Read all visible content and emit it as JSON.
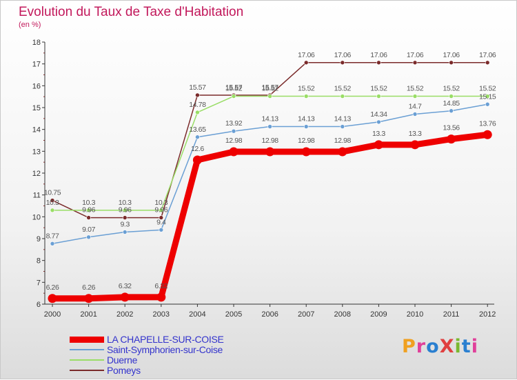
{
  "header": {
    "title": "Evolution du Taux de Taxe d'Habitation",
    "subtitle": "(en %)"
  },
  "logo": {
    "text": "ProXiti",
    "letter_colors": [
      "#f0a020",
      "#e0409a",
      "#2a7fd0",
      "#e04040",
      "#7ab830",
      "#2a7fd0",
      "#e0409a"
    ]
  },
  "chart_data": {
    "type": "line",
    "title": "Evolution du Taux de Taxe d'Habitation",
    "subtitle": "(en %)",
    "xlabel": "",
    "ylabel": "",
    "x": [
      "2000",
      "2001",
      "2002",
      "2003",
      "2004",
      "2005",
      "2006",
      "2007",
      "2008",
      "2009",
      "2010",
      "2011",
      "2012"
    ],
    "ylim": [
      6,
      18
    ],
    "yticks": [
      6,
      7,
      8,
      9,
      10,
      11,
      12,
      13,
      14,
      15,
      16,
      17,
      18
    ],
    "grid": false,
    "legend_position": "bottom-left",
    "series": [
      {
        "name": "LA CHAPELLE-SUR-COISE",
        "color": "#ee0000",
        "values": [
          6.26,
          6.26,
          6.32,
          6.32,
          12.6,
          12.98,
          12.98,
          12.98,
          12.98,
          13.3,
          13.3,
          13.56,
          13.76
        ],
        "labels": [
          "6.26",
          "6.26",
          "6.32",
          "6.32",
          "12.6",
          "12.98",
          "12.98",
          "12.98",
          "12.98",
          "13.3",
          "13.3",
          "13.56",
          "13.76"
        ]
      },
      {
        "name": "Saint-Symphorien-sur-Coise",
        "color": "#6a9fd4",
        "values": [
          8.77,
          9.07,
          9.3,
          9.4,
          13.65,
          13.92,
          14.13,
          14.13,
          14.13,
          14.34,
          14.7,
          14.85,
          15.15
        ],
        "labels": [
          "8.77",
          "9.07",
          "9.3",
          "9.4",
          "13.65",
          "13.92",
          "14.13",
          "14.13",
          "14.13",
          "14.34",
          "14.7",
          "14.85",
          "15.15"
        ]
      },
      {
        "name": "Duerne",
        "color": "#99dd66",
        "values": [
          10.3,
          10.3,
          10.3,
          10.3,
          14.78,
          15.52,
          15.52,
          15.52,
          15.52,
          15.52,
          15.52,
          15.52,
          15.52
        ],
        "labels": [
          "10.3",
          "10.3",
          "10.3",
          "10.3",
          "14.78",
          "15.52",
          "15.52",
          "15.52",
          "15.52",
          "15.52",
          "15.52",
          "15.52",
          "15.52"
        ]
      },
      {
        "name": "Pomeys",
        "color": "#7a2a2a",
        "values": [
          10.75,
          9.96,
          9.96,
          9.96,
          15.57,
          15.57,
          15.57,
          17.06,
          17.06,
          17.06,
          17.06,
          17.06,
          17.06
        ],
        "labels": [
          "10.75",
          "9.96",
          "9.96",
          "9.96",
          "15.57",
          "15.57",
          "15.57",
          "17.06",
          "17.06",
          "17.06",
          "17.06",
          "17.06",
          "17.06"
        ]
      }
    ]
  }
}
